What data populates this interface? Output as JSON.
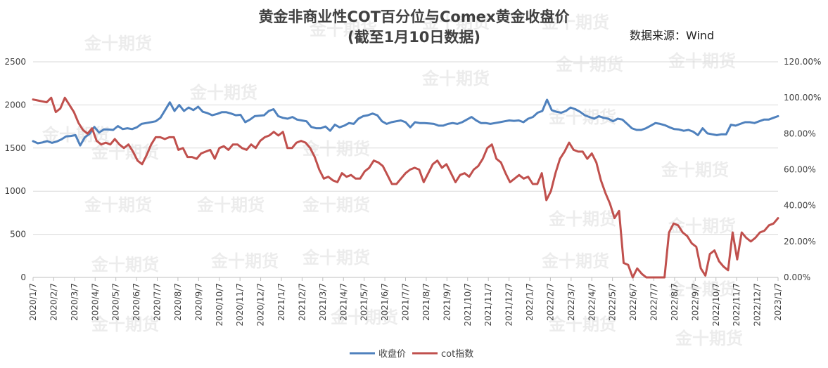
{
  "title_line1": "黄金非商业性COT百分位与Comex黄金收盘价",
  "title_line2": "(截至1月10日数据)",
  "source": "数据来源：Wind",
  "watermark": "金十期货",
  "chart_data": {
    "type": "line",
    "y_left": {
      "min": 0,
      "max": 2500,
      "ticks": [
        "0",
        "500",
        "1000",
        "1500",
        "2000",
        "2500"
      ]
    },
    "y_right": {
      "min": 0,
      "max": 1.2,
      "ticks": [
        "0.00%",
        "20.00%",
        "40.00%",
        "60.00%",
        "80.00%",
        "100.00%",
        "120.00%"
      ]
    },
    "x_labels": [
      "2020/1/7",
      "2020/2/7",
      "2020/3/7",
      "2020/4/7",
      "2020/5/7",
      "2020/6/7",
      "2020/7/7",
      "2020/8/7",
      "2020/9/7",
      "2020/10/7",
      "2020/11/7",
      "2020/12/7",
      "2021/1/7",
      "2021/2/7",
      "2021/3/7",
      "2021/4/7",
      "2021/5/7",
      "2021/6/7",
      "2021/7/7",
      "2021/8/7",
      "2021/9/7",
      "2021/10/7",
      "2021/11/7",
      "2021/12/7",
      "2022/1/7",
      "2022/2/7",
      "2022/3/7",
      "2022/4/7",
      "2022/5/7",
      "2022/6/7",
      "2022/7/7",
      "2022/8/7",
      "2022/9/7",
      "2022/10/7",
      "2022/11/7",
      "2022/12/7",
      "2023/1/7"
    ],
    "grid": "horizontal",
    "legend": "bottom",
    "series": [
      {
        "name": "收盘价",
        "axis": "left",
        "color": "#4f81bd",
        "values": [
          1580,
          1555,
          1565,
          1580,
          1560,
          1575,
          1600,
          1635,
          1640,
          1650,
          1530,
          1625,
          1665,
          1745,
          1680,
          1715,
          1715,
          1710,
          1755,
          1720,
          1730,
          1720,
          1740,
          1780,
          1790,
          1800,
          1810,
          1850,
          1940,
          2030,
          1930,
          2000,
          1930,
          1970,
          1940,
          1980,
          1920,
          1905,
          1880,
          1895,
          1915,
          1915,
          1900,
          1880,
          1885,
          1800,
          1830,
          1870,
          1875,
          1880,
          1930,
          1950,
          1870,
          1850,
          1840,
          1860,
          1830,
          1820,
          1810,
          1745,
          1730,
          1730,
          1750,
          1700,
          1770,
          1740,
          1760,
          1790,
          1780,
          1840,
          1870,
          1880,
          1900,
          1880,
          1810,
          1780,
          1800,
          1810,
          1820,
          1800,
          1740,
          1800,
          1790,
          1790,
          1785,
          1780,
          1760,
          1760,
          1780,
          1790,
          1780,
          1800,
          1830,
          1860,
          1820,
          1790,
          1790,
          1780,
          1790,
          1800,
          1810,
          1820,
          1815,
          1820,
          1800,
          1840,
          1860,
          1910,
          1930,
          2060,
          1940,
          1920,
          1910,
          1930,
          1970,
          1950,
          1920,
          1880,
          1860,
          1840,
          1870,
          1850,
          1840,
          1810,
          1840,
          1830,
          1780,
          1730,
          1710,
          1710,
          1730,
          1760,
          1790,
          1780,
          1765,
          1740,
          1720,
          1715,
          1700,
          1710,
          1690,
          1650,
          1730,
          1670,
          1660,
          1650,
          1660,
          1660,
          1770,
          1760,
          1780,
          1800,
          1800,
          1790,
          1810,
          1830,
          1830,
          1850,
          1870
        ]
      },
      {
        "name": "cot指数",
        "axis": "right",
        "color": "#c0504d",
        "values": [
          0.99,
          0.985,
          0.98,
          0.975,
          1.0,
          0.92,
          0.94,
          1.0,
          0.96,
          0.92,
          0.86,
          0.82,
          0.8,
          0.83,
          0.76,
          0.74,
          0.75,
          0.74,
          0.77,
          0.74,
          0.72,
          0.74,
          0.7,
          0.65,
          0.63,
          0.68,
          0.74,
          0.78,
          0.78,
          0.77,
          0.78,
          0.78,
          0.71,
          0.72,
          0.67,
          0.67,
          0.66,
          0.69,
          0.7,
          0.71,
          0.66,
          0.72,
          0.73,
          0.71,
          0.74,
          0.74,
          0.72,
          0.71,
          0.74,
          0.72,
          0.76,
          0.78,
          0.79,
          0.81,
          0.79,
          0.81,
          0.72,
          0.72,
          0.75,
          0.76,
          0.75,
          0.72,
          0.67,
          0.6,
          0.55,
          0.56,
          0.54,
          0.53,
          0.58,
          0.56,
          0.57,
          0.55,
          0.55,
          0.59,
          0.61,
          0.65,
          0.64,
          0.62,
          0.57,
          0.52,
          0.52,
          0.55,
          0.58,
          0.6,
          0.61,
          0.6,
          0.53,
          0.58,
          0.63,
          0.65,
          0.61,
          0.63,
          0.58,
          0.53,
          0.57,
          0.58,
          0.56,
          0.6,
          0.62,
          0.66,
          0.72,
          0.74,
          0.66,
          0.64,
          0.58,
          0.53,
          0.55,
          0.57,
          0.55,
          0.56,
          0.52,
          0.52,
          0.58,
          0.43,
          0.48,
          0.58,
          0.66,
          0.7,
          0.75,
          0.71,
          0.7,
          0.7,
          0.66,
          0.69,
          0.64,
          0.54,
          0.47,
          0.41,
          0.33,
          0.37,
          0.08,
          0.07,
          0.0,
          0.05,
          0.02,
          0.0,
          0.0,
          0.0,
          0.0,
          0.0,
          0.25,
          0.3,
          0.29,
          0.25,
          0.23,
          0.19,
          0.17,
          0.05,
          0.01,
          0.13,
          0.15,
          0.09,
          0.06,
          0.04,
          0.25,
          0.1,
          0.25,
          0.22,
          0.2,
          0.22,
          0.25,
          0.26,
          0.29,
          0.3,
          0.33
        ]
      }
    ]
  }
}
